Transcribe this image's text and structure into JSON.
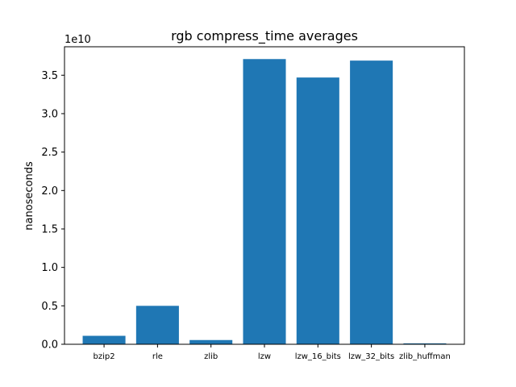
{
  "chart_data": {
    "type": "bar",
    "title": "rgb compress_time averages",
    "xlabel": "",
    "ylabel": "nanoseconds",
    "y_offset_label": "1e10",
    "y_scale": 10000000000,
    "categories": [
      "bzip2",
      "rle",
      "zlib",
      "lzw",
      "lzw_16_bits",
      "lzw_32_bits",
      "zlib_huffman"
    ],
    "values": [
      1100000000,
      5000000000,
      550000000,
      37100000000,
      34700000000,
      36900000000,
      120000000
    ],
    "ylim": [
      0,
      38700000000
    ],
    "yticks": [
      0,
      5000000000,
      10000000000,
      15000000000,
      20000000000,
      25000000000,
      30000000000,
      35000000000
    ],
    "ytick_labels": [
      "0.0",
      "0.5",
      "1.0",
      "1.5",
      "2.0",
      "2.5",
      "3.0",
      "3.5"
    ],
    "bar_color": "#1f77b4",
    "grid": false,
    "legend": "none"
  }
}
